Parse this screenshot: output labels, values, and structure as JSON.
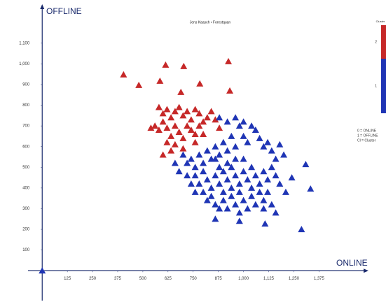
{
  "chart_data": {
    "type": "scatter",
    "title": "Jens Kaasch • Forestquan",
    "x_label": "ONLINE",
    "y_label": "OFFLINE",
    "xlim": [
      -60,
      1600
    ],
    "ylim": [
      -60,
      1275
    ],
    "xticks": [
      125,
      250,
      375,
      500,
      625,
      750,
      875,
      {
        "value": 1000,
        "label": "1,000"
      },
      {
        "value": 1125,
        "label": "1,125"
      },
      {
        "value": 1250,
        "label": "1,250"
      },
      {
        "value": 1375,
        "label": "1,375"
      }
    ],
    "yticks": [
      100,
      200,
      300,
      400,
      500,
      600,
      700,
      800,
      900,
      {
        "value": 1000,
        "label": "1,000"
      },
      {
        "value": 1100,
        "label": "1,100"
      }
    ],
    "legend_title": "Cluster",
    "legend_notes": [
      "0 = ONLINE",
      "1 = OFFLINE",
      "Cl = Cluster"
    ],
    "series": [
      {
        "name": "2",
        "color": "#c62828",
        "x": [
          404,
          480,
          613,
          585,
          703,
          689,
          783,
          925,
          932,
          580,
          600,
          620,
          640,
          660,
          680,
          700,
          720,
          740,
          760,
          780,
          800,
          820,
          840,
          860,
          880,
          560,
          580,
          600,
          620,
          640,
          660,
          680,
          700,
          720,
          740,
          760,
          780,
          800,
          540,
          620,
          660,
          700,
          640,
          600,
          760
        ],
        "values": [
          948,
          897,
          995,
          917,
          988,
          863,
          904,
          1012,
          870,
          790,
          760,
          780,
          740,
          770,
          790,
          750,
          770,
          730,
          780,
          760,
          720,
          740,
          770,
          730,
          690,
          700,
          680,
          720,
          690,
          650,
          700,
          670,
          640,
          700,
          680,
          660,
          700,
          660,
          690,
          620,
          610,
          590,
          580,
          560,
          620
        ]
      },
      {
        "name": "1",
        "color": "#1f35b5",
        "x": [
          0,
          700,
          720,
          740,
          760,
          780,
          800,
          820,
          840,
          860,
          880,
          900,
          920,
          940,
          960,
          980,
          1000,
          1020,
          1040,
          1060,
          1080,
          1100,
          1120,
          1140,
          1160,
          1180,
          1200,
          880,
          920,
          960,
          1000,
          760,
          780,
          800,
          820,
          840,
          860,
          880,
          900,
          920,
          940,
          960,
          980,
          1000,
          1020,
          1040,
          1060,
          1080,
          1100,
          1120,
          1140,
          1160,
          1180,
          800,
          820,
          840,
          860,
          880,
          900,
          920,
          940,
          960,
          980,
          1000,
          1020,
          1040,
          1060,
          1080,
          1100,
          1120,
          1140,
          1160,
          760,
          740,
          720,
          680,
          660,
          880,
          920,
          960,
          1000,
          860,
          900,
          940,
          980,
          1040,
          1100,
          1107,
          1288,
          1333,
          1309,
          1240,
          1210,
          860,
          980
        ],
        "values": [
          0,
          560,
          520,
          540,
          500,
          560,
          520,
          580,
          540,
          600,
          560,
          620,
          580,
          650,
          600,
          700,
          650,
          620,
          700,
          680,
          640,
          600,
          620,
          580,
          540,
          610,
          560,
          740,
          720,
          740,
          720,
          460,
          420,
          480,
          440,
          400,
          460,
          420,
          380,
          440,
          400,
          460,
          420,
          480,
          440,
          500,
          460,
          420,
          480,
          440,
          500,
          460,
          420,
          380,
          340,
          360,
          320,
          300,
          340,
          300,
          360,
          320,
          280,
          340,
          300,
          360,
          320,
          380,
          340,
          380,
          320,
          280,
          380,
          420,
          460,
          480,
          520,
          500,
          520,
          540,
          540,
          540,
          480,
          500,
          380,
          400,
          300,
          227,
          200,
          396,
          514,
          450,
          380,
          250,
          240
        ]
      }
    ]
  }
}
